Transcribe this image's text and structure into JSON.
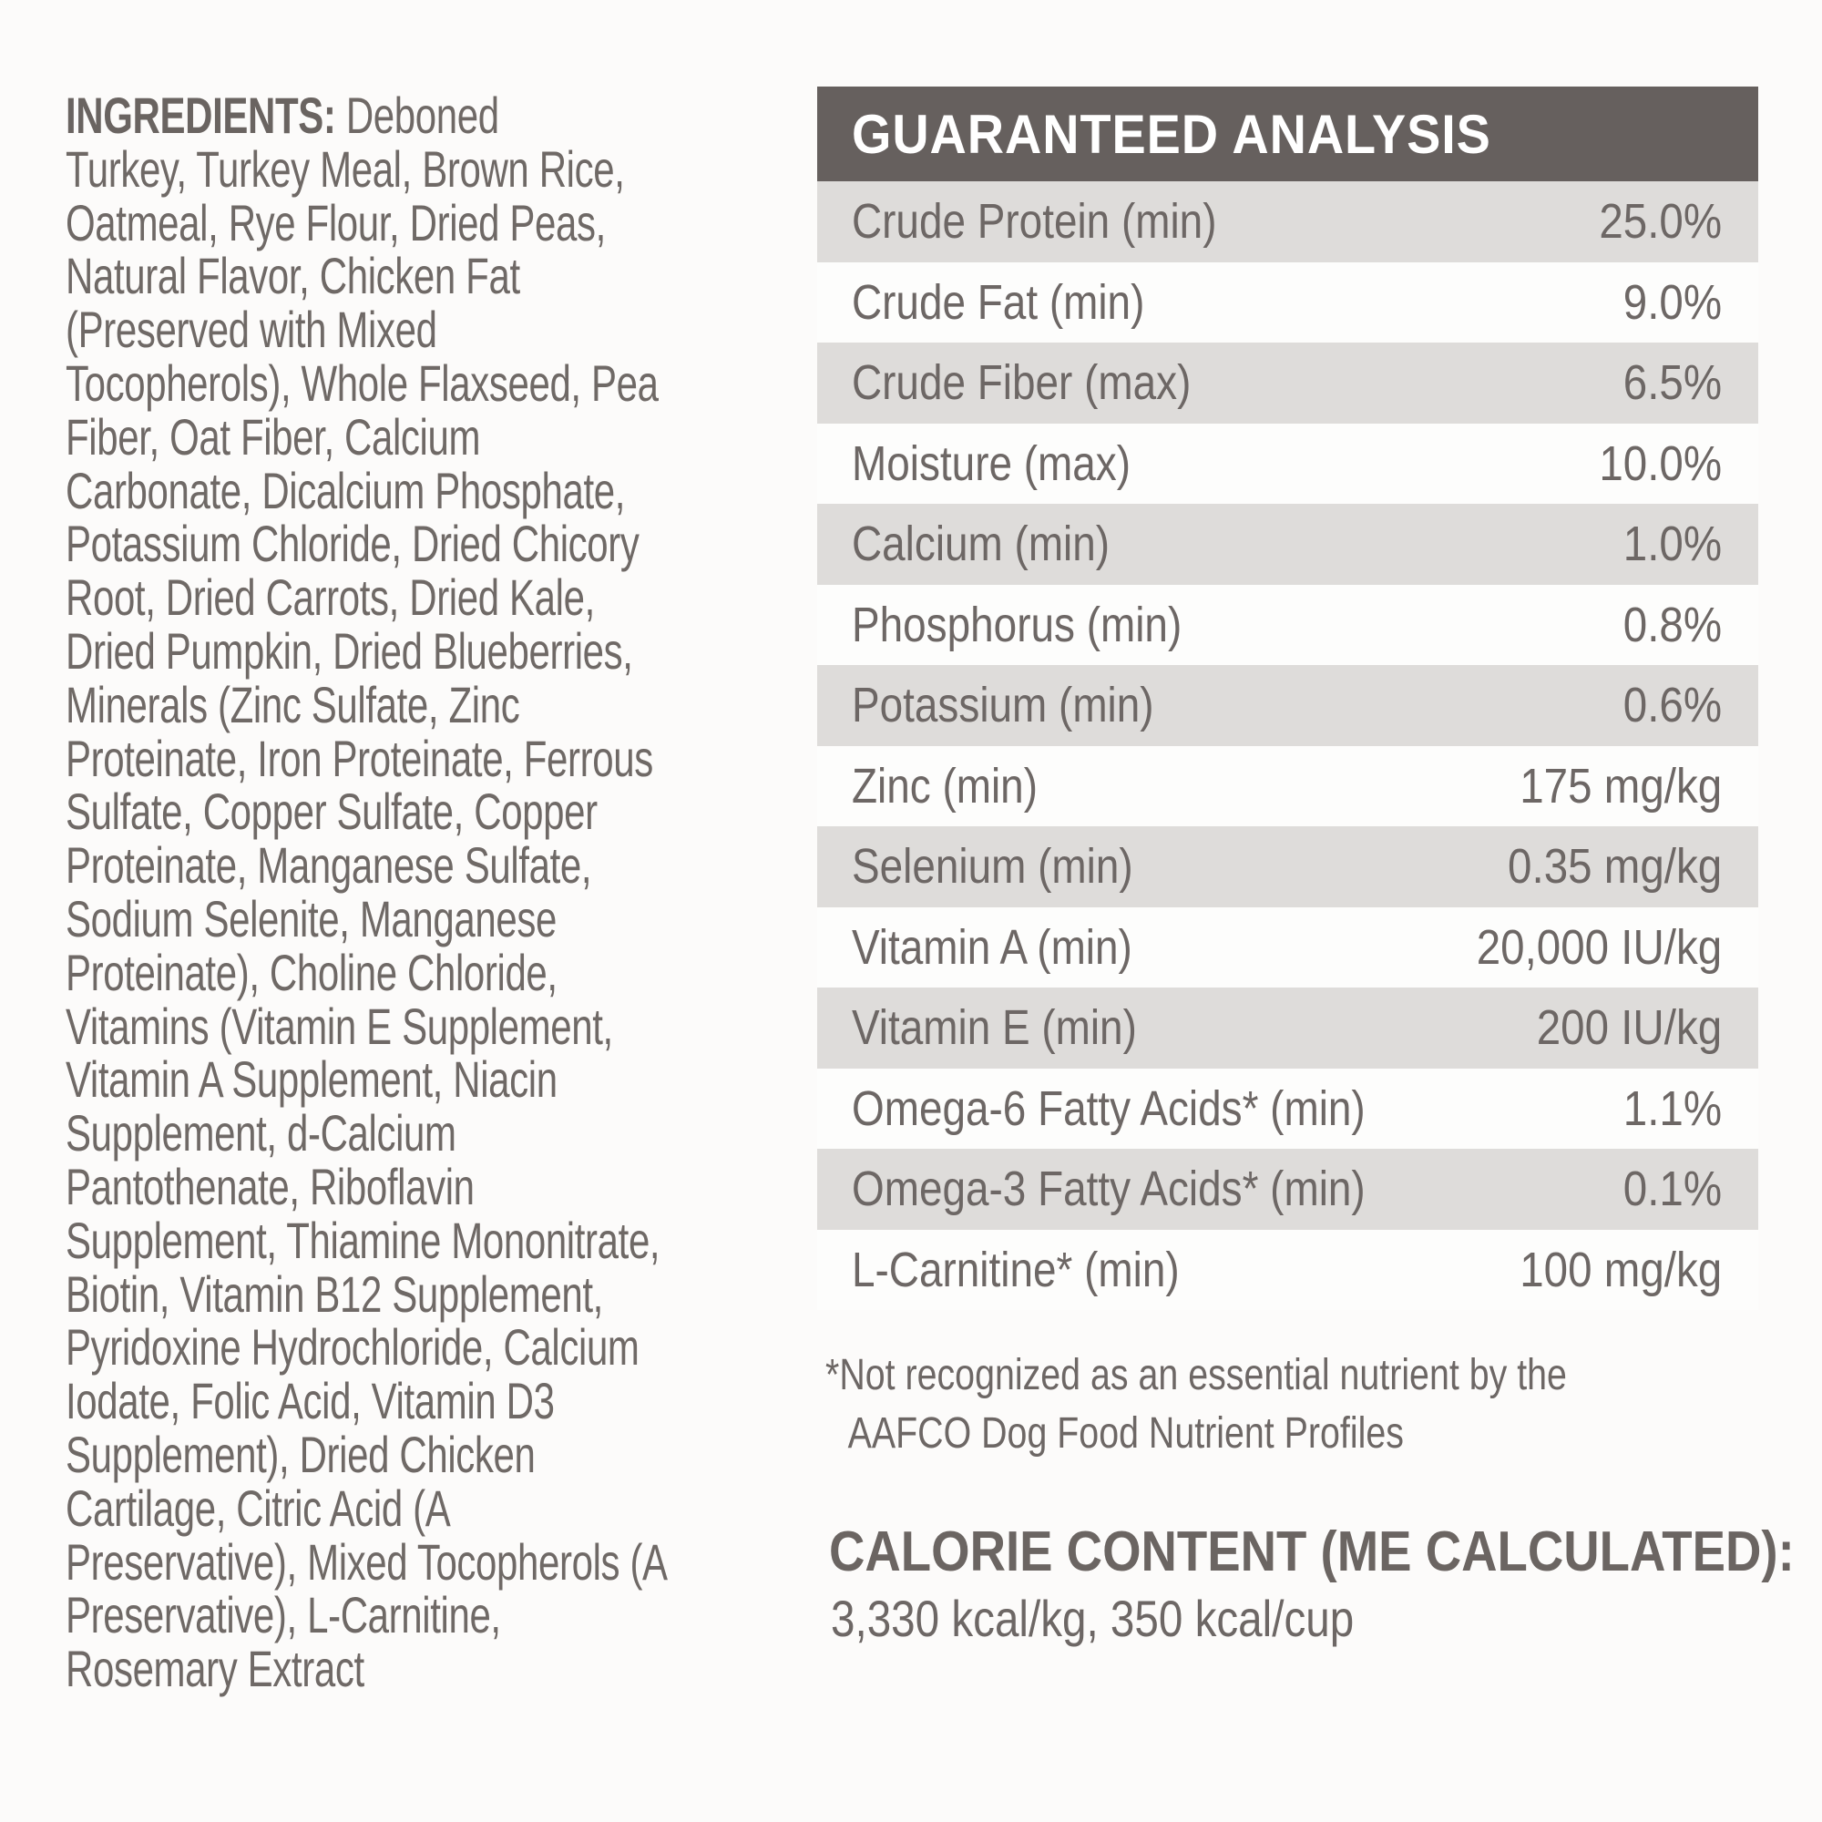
{
  "colors": {
    "header_background": "#66605e",
    "header_text": "#ffffff",
    "shaded_row": "#dedcda",
    "body_text": "#6d6765",
    "page_background": "#fcfbfa"
  },
  "ingredients": {
    "label": "INGREDIENTS:",
    "text": "Deboned\nTurkey, Turkey Meal, Brown Rice,\nOatmeal, Rye Flour, Dried Peas,\nNatural Flavor, Chicken Fat\n(Preserved with Mixed\nTocopherols), Whole Flaxseed, Pea\nFiber, Oat Fiber, Calcium\nCarbonate, Dicalcium Phosphate,\nPotassium Chloride, Dried Chicory\nRoot, Dried Carrots, Dried Kale,\nDried Pumpkin, Dried Blueberries,\nMinerals (Zinc Sulfate, Zinc\nProteinate, Iron Proteinate, Ferrous\nSulfate, Copper Sulfate, Copper\nProteinate, Manganese Sulfate,\nSodium Selenite, Manganese\nProteinate), Choline Chloride,\nVitamins (Vitamin E Supplement,\nVitamin A Supplement, Niacin\nSupplement, d-Calcium\nPantothenate, Riboflavin\nSupplement, Thiamine Mononitrate,\nBiotin, Vitamin B12 Supplement,\nPyridoxine Hydrochloride, Calcium\nIodate, Folic Acid, Vitamin D3\nSupplement), Dried Chicken\nCartilage, Citric Acid (A\nPreservative), Mixed Tocopherols (A\nPreservative), L-Carnitine,\nRosemary Extract"
  },
  "analysis": {
    "title": "GUARANTEED ANALYSIS",
    "rows": [
      {
        "label": "Crude Protein (min)",
        "value": "25.0%"
      },
      {
        "label": "Crude Fat (min)",
        "value": "9.0%"
      },
      {
        "label": "Crude Fiber (max)",
        "value": "6.5%"
      },
      {
        "label": "Moisture (max)",
        "value": "10.0%"
      },
      {
        "label": "Calcium (min)",
        "value": "1.0%"
      },
      {
        "label": "Phosphorus (min)",
        "value": "0.8%"
      },
      {
        "label": "Potassium (min)",
        "value": "0.6%"
      },
      {
        "label": "Zinc (min)",
        "value": "175 mg/kg"
      },
      {
        "label": "Selenium (min)",
        "value": "0.35 mg/kg"
      },
      {
        "label": "Vitamin A (min)",
        "value": "20,000 IU/kg"
      },
      {
        "label": "Vitamin E (min)",
        "value": "200 IU/kg"
      },
      {
        "label": "Omega-6 Fatty Acids* (min)",
        "value": "1.1%"
      },
      {
        "label": "Omega-3 Fatty Acids* (min)",
        "value": "0.1%"
      },
      {
        "label": "L-Carnitine* (min)",
        "value": "100 mg/kg"
      }
    ],
    "footnote_line1": "*Not recognized as an essential nutrient by the",
    "footnote_line2": "AAFCO Dog Food Nutrient Profiles"
  },
  "calories": {
    "title": "CALORIE CONTENT (ME CALCULATED):",
    "value": "3,330 kcal/kg, 350 kcal/cup"
  }
}
